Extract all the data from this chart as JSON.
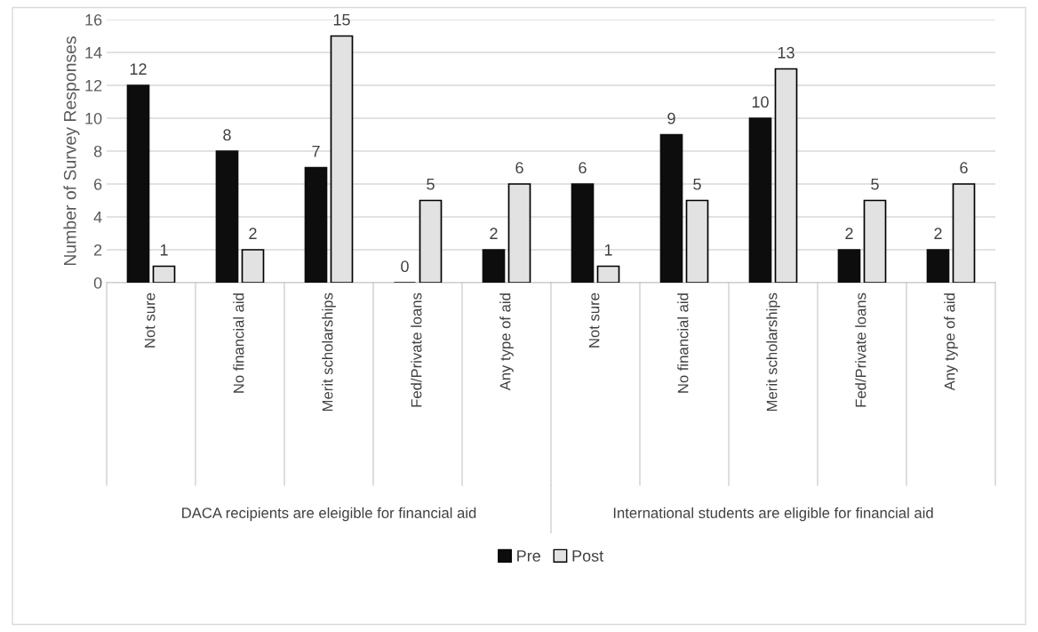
{
  "chart_data": {
    "type": "bar",
    "ylabel": "Number of Survey Responses",
    "categories": [
      "Not sure",
      "No financial aid",
      "Merit scholarships",
      "Fed/Private loans",
      "Any type of aid",
      "Not sure",
      "No financial aid",
      "Merit scholarships",
      "Fed/Private loans",
      "Any type of aid"
    ],
    "series": [
      {
        "name": "Pre",
        "color": "#0d0d0d",
        "values": [
          12,
          8,
          7,
          0,
          2,
          6,
          9,
          10,
          2,
          2
        ]
      },
      {
        "name": "Post",
        "color": "#e2e2e2",
        "values": [
          1,
          2,
          15,
          5,
          6,
          1,
          5,
          13,
          5,
          6
        ]
      }
    ],
    "ylim": [
      0,
      16
    ],
    "yticks": [
      0,
      2,
      4,
      6,
      8,
      10,
      12,
      14,
      16
    ],
    "grid": "y",
    "legend": "bottom",
    "data_labels": true,
    "annotations": [
      "DACA recipients are eleigible for financial aid",
      "International students are eligible for financial aid"
    ]
  }
}
